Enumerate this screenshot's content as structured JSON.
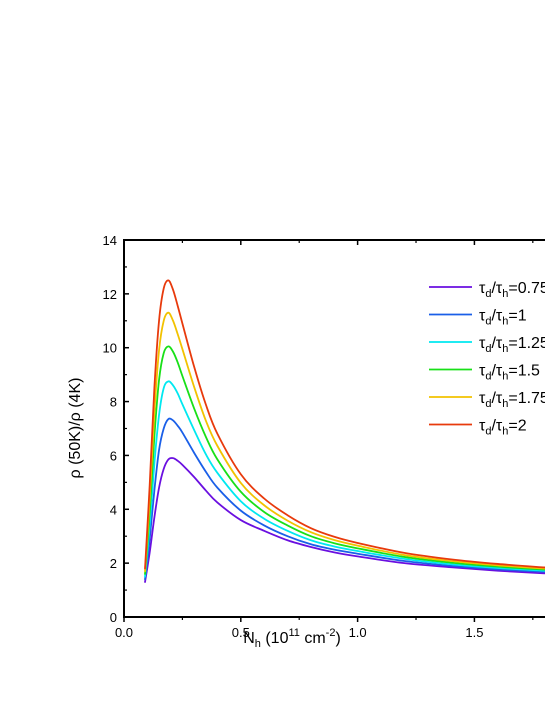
{
  "chart_data": {
    "type": "line",
    "xlabel": "N_h (10^11 cm^-2)",
    "ylabel": "ρ (50K)/ρ (4K)",
    "xlim": [
      0.0,
      1.8
    ],
    "ylim": [
      0,
      14
    ],
    "x_ticks": [
      "0.0",
      "0.5",
      "1.0",
      "1.5"
    ],
    "y_ticks": [
      "0",
      "2",
      "4",
      "6",
      "8",
      "10",
      "12",
      "14"
    ],
    "legend_position": "top-right",
    "grid": false,
    "x": [
      0.09,
      0.11,
      0.13,
      0.15,
      0.17,
      0.19,
      0.21,
      0.23,
      0.25,
      0.3,
      0.35,
      0.4,
      0.5,
      0.6,
      0.7,
      0.8,
      0.9,
      1.0,
      1.2,
      1.4,
      1.6,
      1.8
    ],
    "series": [
      {
        "name": "τd/τh=0.75",
        "color": "#6a0fe0",
        "values": [
          1.3,
          2.4,
          3.7,
          4.8,
          5.5,
          5.85,
          5.9,
          5.8,
          5.65,
          5.2,
          4.7,
          4.25,
          3.6,
          3.2,
          2.85,
          2.6,
          2.4,
          2.25,
          2.0,
          1.85,
          1.72,
          1.62
        ]
      },
      {
        "name": "τd/τh=1",
        "color": "#1a5fe8",
        "values": [
          1.4,
          2.9,
          4.7,
          6.2,
          7.0,
          7.35,
          7.3,
          7.1,
          6.85,
          6.1,
          5.4,
          4.8,
          3.95,
          3.4,
          3.0,
          2.7,
          2.5,
          2.35,
          2.08,
          1.9,
          1.77,
          1.68
        ]
      },
      {
        "name": "τd/τh=1.25",
        "color": "#00e8f0",
        "values": [
          1.5,
          3.4,
          5.7,
          7.5,
          8.5,
          8.75,
          8.6,
          8.3,
          7.9,
          6.95,
          6.05,
          5.35,
          4.3,
          3.65,
          3.2,
          2.85,
          2.62,
          2.45,
          2.16,
          1.96,
          1.82,
          1.72
        ]
      },
      {
        "name": "τd/τh=1.5",
        "color": "#18e018",
        "values": [
          1.6,
          3.9,
          6.7,
          8.8,
          9.8,
          10.05,
          9.85,
          9.45,
          8.95,
          7.75,
          6.7,
          5.85,
          4.65,
          3.9,
          3.4,
          3.0,
          2.74,
          2.55,
          2.23,
          2.02,
          1.87,
          1.76
        ]
      },
      {
        "name": "τd/τh=1.75",
        "color": "#f2c200",
        "values": [
          1.7,
          4.4,
          7.6,
          9.9,
          11.0,
          11.3,
          11.0,
          10.5,
          9.95,
          8.55,
          7.3,
          6.35,
          4.98,
          4.15,
          3.58,
          3.15,
          2.86,
          2.65,
          2.3,
          2.08,
          1.92,
          1.8
        ]
      },
      {
        "name": "τd/τh=2",
        "color": "#e83a0c",
        "values": [
          1.8,
          4.9,
          8.5,
          11.0,
          12.2,
          12.5,
          12.15,
          11.55,
          10.9,
          9.3,
          7.9,
          6.8,
          5.3,
          4.4,
          3.78,
          3.3,
          2.98,
          2.75,
          2.38,
          2.14,
          1.97,
          1.84
        ]
      }
    ]
  }
}
